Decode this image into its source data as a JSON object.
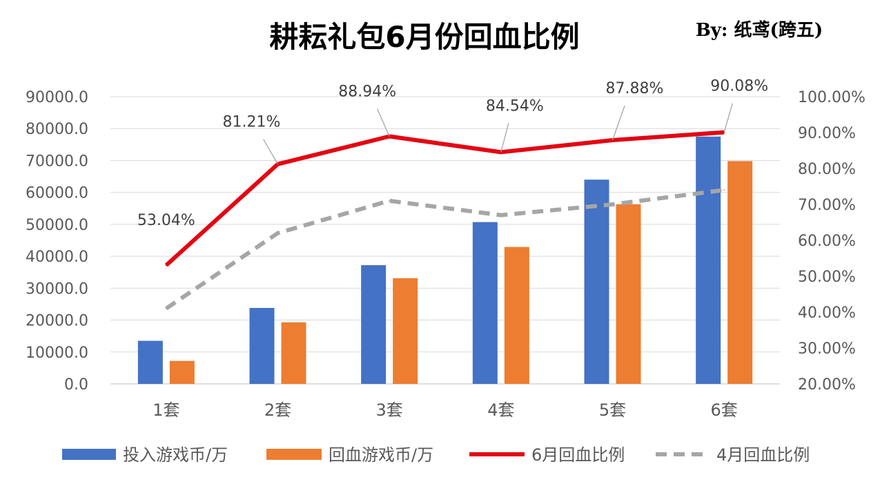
{
  "chart_data": {
    "type": "bar",
    "title": "耕耘礼包6月份回血比例",
    "author": "By: 纸鸢(跨五)",
    "categories": [
      "1套",
      "2套",
      "3套",
      "4套",
      "5套",
      "6套"
    ],
    "y_left": {
      "min": 0,
      "max": 90000,
      "ticks": [
        "0.0",
        "10000.0",
        "20000.0",
        "30000.0",
        "40000.0",
        "50000.0",
        "60000.0",
        "70000.0",
        "80000.0",
        "90000.0"
      ]
    },
    "y_right": {
      "min": 0.2,
      "max": 1.0,
      "ticks": [
        "20.00%",
        "30.00%",
        "40.00%",
        "50.00%",
        "60.00%",
        "70.00%",
        "80.00%",
        "90.00%",
        "100.00%"
      ]
    },
    "grid": true,
    "legend_position": "bottom",
    "series": [
      {
        "name": "投入游戏币/万",
        "type": "bar",
        "axis": "left",
        "color": "#4472C4",
        "values": [
          13500,
          23800,
          37200,
          50700,
          64000,
          77500
        ]
      },
      {
        "name": "回血游戏币/万",
        "type": "bar",
        "axis": "left",
        "color": "#ED7D31",
        "values": [
          7200,
          19300,
          33100,
          42900,
          56300,
          69800
        ]
      },
      {
        "name": "6月回血比例",
        "type": "line",
        "axis": "right",
        "color": "#E30613",
        "style": "solid",
        "values": [
          0.5304,
          0.8121,
          0.8894,
          0.8454,
          0.8788,
          0.9008
        ],
        "labels": [
          "53.04%",
          "81.21%",
          "88.94%",
          "84.54%",
          "87.88%",
          "90.08%"
        ]
      },
      {
        "name": "4月回血比例",
        "type": "line",
        "axis": "right",
        "color": "#A6A6A6",
        "style": "dashed",
        "values": [
          0.41,
          0.62,
          0.71,
          0.67,
          0.7,
          0.74
        ]
      }
    ]
  }
}
